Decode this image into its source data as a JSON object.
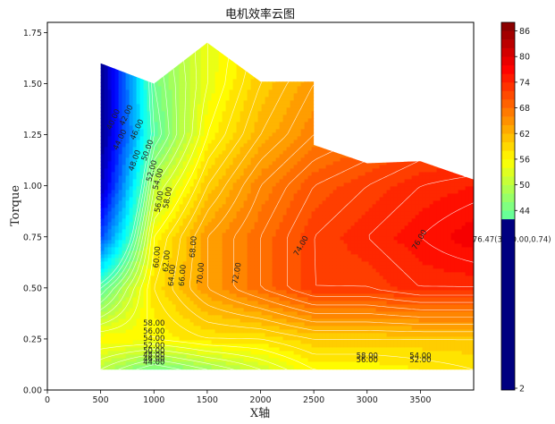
{
  "chart_data": {
    "type": "heatmap",
    "title": "电机效率云图",
    "xlabel": "X轴",
    "ylabel": "Torque",
    "xlim": [
      0,
      4000
    ],
    "ylim": [
      0,
      1.8
    ],
    "x_ticks": [
      "0",
      "500",
      "1000",
      "1500",
      "2000",
      "2500",
      "3000",
      "3500"
    ],
    "x_tick_values": [
      0,
      500,
      1000,
      1500,
      2000,
      2500,
      3000,
      3500
    ],
    "y_ticks": [
      "0.00",
      "0.25",
      "0.50",
      "0.75",
      "1.00",
      "1.25",
      "1.50",
      "1.75"
    ],
    "y_tick_values": [
      0,
      0.25,
      0.5,
      0.75,
      1.0,
      1.25,
      1.5,
      1.75
    ],
    "colorbar": {
      "min": 2,
      "max": 88,
      "ticks": [
        "2",
        "44",
        "50",
        "56",
        "62",
        "68",
        "74",
        "80",
        "86"
      ],
      "tick_values": [
        2,
        44,
        50,
        56,
        62,
        68,
        74,
        80,
        86
      ]
    },
    "boundary": [
      [
        500,
        0.1
      ],
      [
        500,
        1.6
      ],
      [
        1000,
        1.5
      ],
      [
        1500,
        1.7
      ],
      [
        2000,
        1.51
      ],
      [
        2500,
        1.51
      ],
      [
        2500,
        1.2
      ],
      [
        3000,
        1.11
      ],
      [
        3500,
        1.12
      ],
      [
        4000,
        1.03
      ],
      [
        4000,
        0.1
      ]
    ],
    "grid_x": [
      500,
      1000,
      1500,
      2000,
      2500,
      3000,
      3500,
      4000
    ],
    "grid_y": [
      0.1,
      0.25,
      0.5,
      0.75,
      1.0,
      1.25,
      1.5,
      1.75
    ],
    "efficiency_grid": [
      [
        50,
        44,
        48,
        52,
        56,
        56,
        57,
        58
      ],
      [
        56,
        56,
        58,
        58,
        60,
        60,
        60,
        60
      ],
      [
        42,
        58,
        64,
        68,
        72,
        72,
        74,
        74
      ],
      [
        18,
        56,
        64,
        68,
        72,
        74,
        76,
        78
      ],
      [
        6,
        50,
        60,
        66,
        70,
        72,
        74,
        75
      ],
      [
        2,
        42,
        56,
        62,
        66,
        68,
        70,
        70
      ],
      [
        2,
        44,
        54,
        60,
        64,
        66,
        66,
        66
      ],
      [
        2,
        46,
        54,
        58,
        60,
        62,
        62,
        62
      ]
    ],
    "contour_labels": [
      {
        "text": "40.00",
        "x": 640,
        "y": 1.32,
        "rot": -65
      },
      {
        "text": "42.00",
        "x": 760,
        "y": 1.34,
        "rot": -65
      },
      {
        "text": "44.00",
        "x": 700,
        "y": 1.22,
        "rot": -65
      },
      {
        "text": "46.00",
        "x": 860,
        "y": 1.27,
        "rot": -65
      },
      {
        "text": "48.00",
        "x": 840,
        "y": 1.12,
        "rot": -70
      },
      {
        "text": "50.00",
        "x": 960,
        "y": 1.17,
        "rot": -70
      },
      {
        "text": "52.00",
        "x": 1000,
        "y": 1.07,
        "rot": -75
      },
      {
        "text": "54.00",
        "x": 1060,
        "y": 1.03,
        "rot": -75
      },
      {
        "text": "56.00",
        "x": 1070,
        "y": 0.92,
        "rot": -80
      },
      {
        "text": "58.00",
        "x": 1150,
        "y": 0.94,
        "rot": -80
      },
      {
        "text": "60.00",
        "x": 1050,
        "y": 0.65,
        "rot": -85
      },
      {
        "text": "62.00",
        "x": 1140,
        "y": 0.63,
        "rot": -85
      },
      {
        "text": "64.00",
        "x": 1190,
        "y": 0.56,
        "rot": -85
      },
      {
        "text": "66.00",
        "x": 1290,
        "y": 0.56,
        "rot": -85
      },
      {
        "text": "68.00",
        "x": 1390,
        "y": 0.7,
        "rot": -85
      },
      {
        "text": "70.00",
        "x": 1460,
        "y": 0.57,
        "rot": -85
      },
      {
        "text": "72.00",
        "x": 1800,
        "y": 0.57,
        "rot": -80
      },
      {
        "text": "74.00",
        "x": 2400,
        "y": 0.7,
        "rot": -60
      },
      {
        "text": "76.00",
        "x": 3510,
        "y": 0.73,
        "rot": -60
      },
      {
        "text": "58.00",
        "x": 1000,
        "y": 0.315,
        "rot": 0
      },
      {
        "text": "56.00",
        "x": 1000,
        "y": 0.275,
        "rot": 0
      },
      {
        "text": "54.00",
        "x": 1000,
        "y": 0.24,
        "rot": 0
      },
      {
        "text": "52.00",
        "x": 1000,
        "y": 0.205,
        "rot": 0
      },
      {
        "text": "50.00",
        "x": 1000,
        "y": 0.18,
        "rot": 0
      },
      {
        "text": "48.00",
        "x": 1000,
        "y": 0.16,
        "rot": 0
      },
      {
        "text": "46.00",
        "x": 1000,
        "y": 0.14,
        "rot": 0
      },
      {
        "text": "44.00",
        "x": 1000,
        "y": 0.125,
        "rot": 0
      },
      {
        "text": "58.00",
        "x": 3000,
        "y": 0.155,
        "rot": 0
      },
      {
        "text": "56.00",
        "x": 3000,
        "y": 0.135,
        "rot": 0
      },
      {
        "text": "54.00",
        "x": 3500,
        "y": 0.155,
        "rot": 0
      },
      {
        "text": "52.00",
        "x": 3500,
        "y": 0.135,
        "rot": 0
      }
    ],
    "max_annotation": {
      "text": "76.47(3900.00,0.74)",
      "x": 3990,
      "y": 0.725
    },
    "grid": false,
    "legend": "none"
  }
}
